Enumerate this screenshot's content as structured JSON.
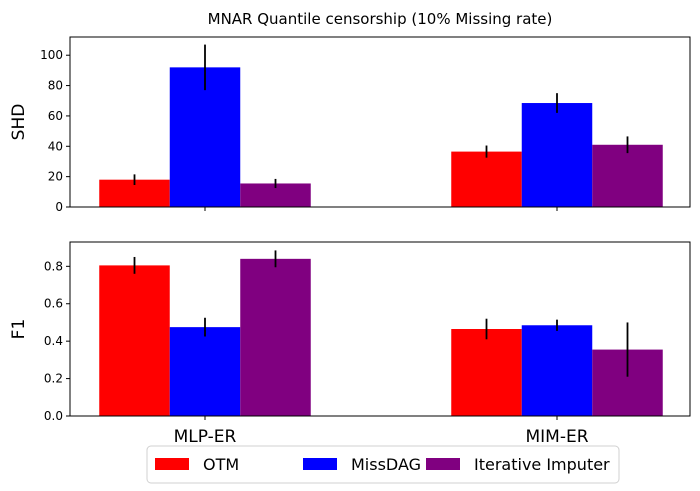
{
  "title": "MNAR Quantile censorship (10% Missing rate)",
  "categories": [
    "MLP-ER",
    "MIM-ER"
  ],
  "legend": {
    "placement": "bottom-center",
    "entries": [
      {
        "name": "OTM",
        "color": "#ff0000"
      },
      {
        "name": "MissDAG",
        "color": "#0000ff"
      },
      {
        "name": "Iterative Imputer",
        "color": "#800080"
      }
    ]
  },
  "chart_data": [
    {
      "type": "bar",
      "ylabel": "SHD",
      "ylim": [
        0,
        112
      ],
      "yticks": [
        0,
        20,
        40,
        60,
        80,
        100
      ],
      "tick_decimals": 0,
      "categories": [
        "MLP-ER",
        "MIM-ER"
      ],
      "series": [
        {
          "name": "OTM",
          "color": "#ff0000",
          "values": [
            18,
            36.5
          ],
          "errors": [
            3.5,
            4
          ]
        },
        {
          "name": "MissDAG",
          "color": "#0000ff",
          "values": [
            92,
            68.5
          ],
          "errors": [
            15,
            6.5
          ]
        },
        {
          "name": "Iterative Imputer",
          "color": "#800080",
          "values": [
            15.5,
            41
          ],
          "errors": [
            3,
            5.5
          ]
        }
      ]
    },
    {
      "type": "bar",
      "ylabel": "F1",
      "ylim": [
        0,
        0.93
      ],
      "yticks": [
        0.0,
        0.2,
        0.4,
        0.6,
        0.8
      ],
      "tick_decimals": 1,
      "categories": [
        "MLP-ER",
        "MIM-ER"
      ],
      "series": [
        {
          "name": "OTM",
          "color": "#ff0000",
          "values": [
            0.805,
            0.465
          ],
          "errors": [
            0.045,
            0.055
          ]
        },
        {
          "name": "MissDAG",
          "color": "#0000ff",
          "values": [
            0.475,
            0.485
          ],
          "errors": [
            0.05,
            0.03
          ]
        },
        {
          "name": "Iterative Imputer",
          "color": "#800080",
          "values": [
            0.84,
            0.355
          ],
          "errors": [
            0.045,
            0.145
          ]
        }
      ]
    }
  ]
}
